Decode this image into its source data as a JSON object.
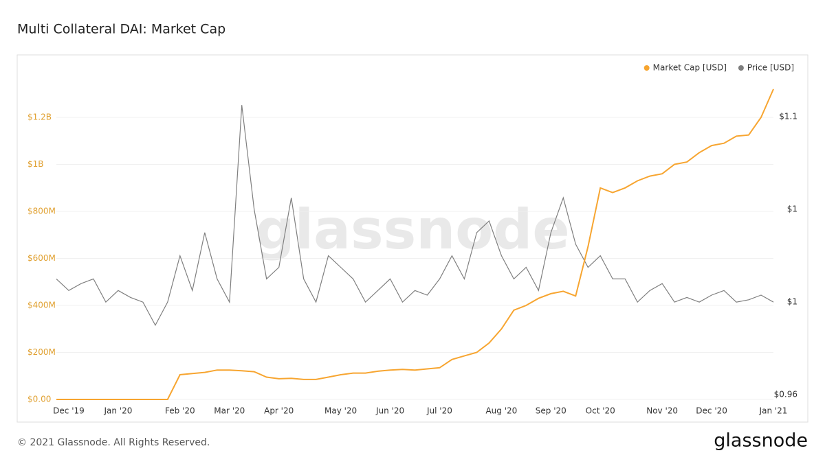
{
  "chart_data": {
    "type": "line",
    "title": "Multi Collateral DAI: Market Cap",
    "watermark": "glassnode",
    "categories": [
      null,
      "Dec '19",
      null,
      null,
      null,
      "Jan '20",
      null,
      null,
      null,
      null,
      "Feb '20",
      null,
      null,
      null,
      "Mar '20",
      null,
      null,
      null,
      "Apr '20",
      null,
      null,
      null,
      null,
      "May '20",
      null,
      null,
      null,
      "Jun '20",
      null,
      null,
      null,
      "Jul '20",
      null,
      null,
      null,
      null,
      "Aug '20",
      null,
      null,
      null,
      "Sep '20",
      null,
      null,
      null,
      "Oct '20",
      null,
      null,
      null,
      null,
      "Nov '20",
      null,
      null,
      null,
      "Dec '20",
      null,
      null,
      null,
      null,
      "Jan '21"
    ],
    "series": [
      {
        "name": "Market Cap [USD]",
        "color": "#f7a530",
        "axis": "y",
        "values": [
          0,
          0,
          0,
          0,
          0,
          0,
          0,
          0,
          0,
          0,
          105000000,
          110000000,
          115000000,
          125000000,
          125000000,
          122000000,
          118000000,
          95000000,
          88000000,
          90000000,
          85000000,
          85000000,
          95000000,
          105000000,
          112000000,
          112000000,
          120000000,
          125000000,
          128000000,
          125000000,
          130000000,
          135000000,
          170000000,
          185000000,
          200000000,
          240000000,
          300000000,
          380000000,
          400000000,
          430000000,
          450000000,
          460000000,
          440000000,
          650000000,
          900000000,
          880000000,
          900000000,
          930000000,
          950000000,
          960000000,
          1000000000,
          1010000000,
          1050000000,
          1080000000,
          1090000000,
          1120000000,
          1125000000,
          1200000000,
          1320000000
        ]
      },
      {
        "name": "Price [USD]",
        "color": "#7f7f7f",
        "axis": "y2",
        "values": [
          1.01,
          1.005,
          1.008,
          1.01,
          1.0,
          1.005,
          1.002,
          1.0,
          0.99,
          1.0,
          1.02,
          1.005,
          1.03,
          1.01,
          1.0,
          1.085,
          1.04,
          1.01,
          1.015,
          1.045,
          1.01,
          1.0,
          1.02,
          1.015,
          1.01,
          1.0,
          1.005,
          1.01,
          1.0,
          1.005,
          1.003,
          1.01,
          1.02,
          1.01,
          1.03,
          1.035,
          1.02,
          1.01,
          1.015,
          1.005,
          1.03,
          1.045,
          1.025,
          1.015,
          1.02,
          1.01,
          1.01,
          1.0,
          1.005,
          1.008,
          1.0,
          1.002,
          1.0,
          1.003,
          1.005,
          1.0,
          1.001,
          1.003,
          1.0
        ]
      }
    ],
    "ylim": [
      0,
      1400000000
    ],
    "yticks": [
      {
        "value": 0,
        "label": "$0.00"
      },
      {
        "value": 200000000,
        "label": "$200M"
      },
      {
        "value": 400000000,
        "label": "$400M"
      },
      {
        "value": 600000000,
        "label": "$600M"
      },
      {
        "value": 800000000,
        "label": "$800M"
      },
      {
        "value": 1000000000,
        "label": "$1B"
      },
      {
        "value": 1200000000,
        "label": "$1.2B"
      }
    ],
    "y2lim": [
      0.958,
      1.1
    ],
    "y2ticks": [
      {
        "value": 0.96,
        "label": "$0.96"
      },
      {
        "value": 1.0,
        "label": "$1"
      },
      {
        "value": 1.04,
        "label": "$1"
      },
      {
        "value": 1.08,
        "label": "$1.1"
      }
    ],
    "grid": true,
    "legend": "top-right"
  },
  "footer": {
    "copyright": "© 2021 Glassnode. All Rights Reserved.",
    "logo": "glassnode"
  }
}
